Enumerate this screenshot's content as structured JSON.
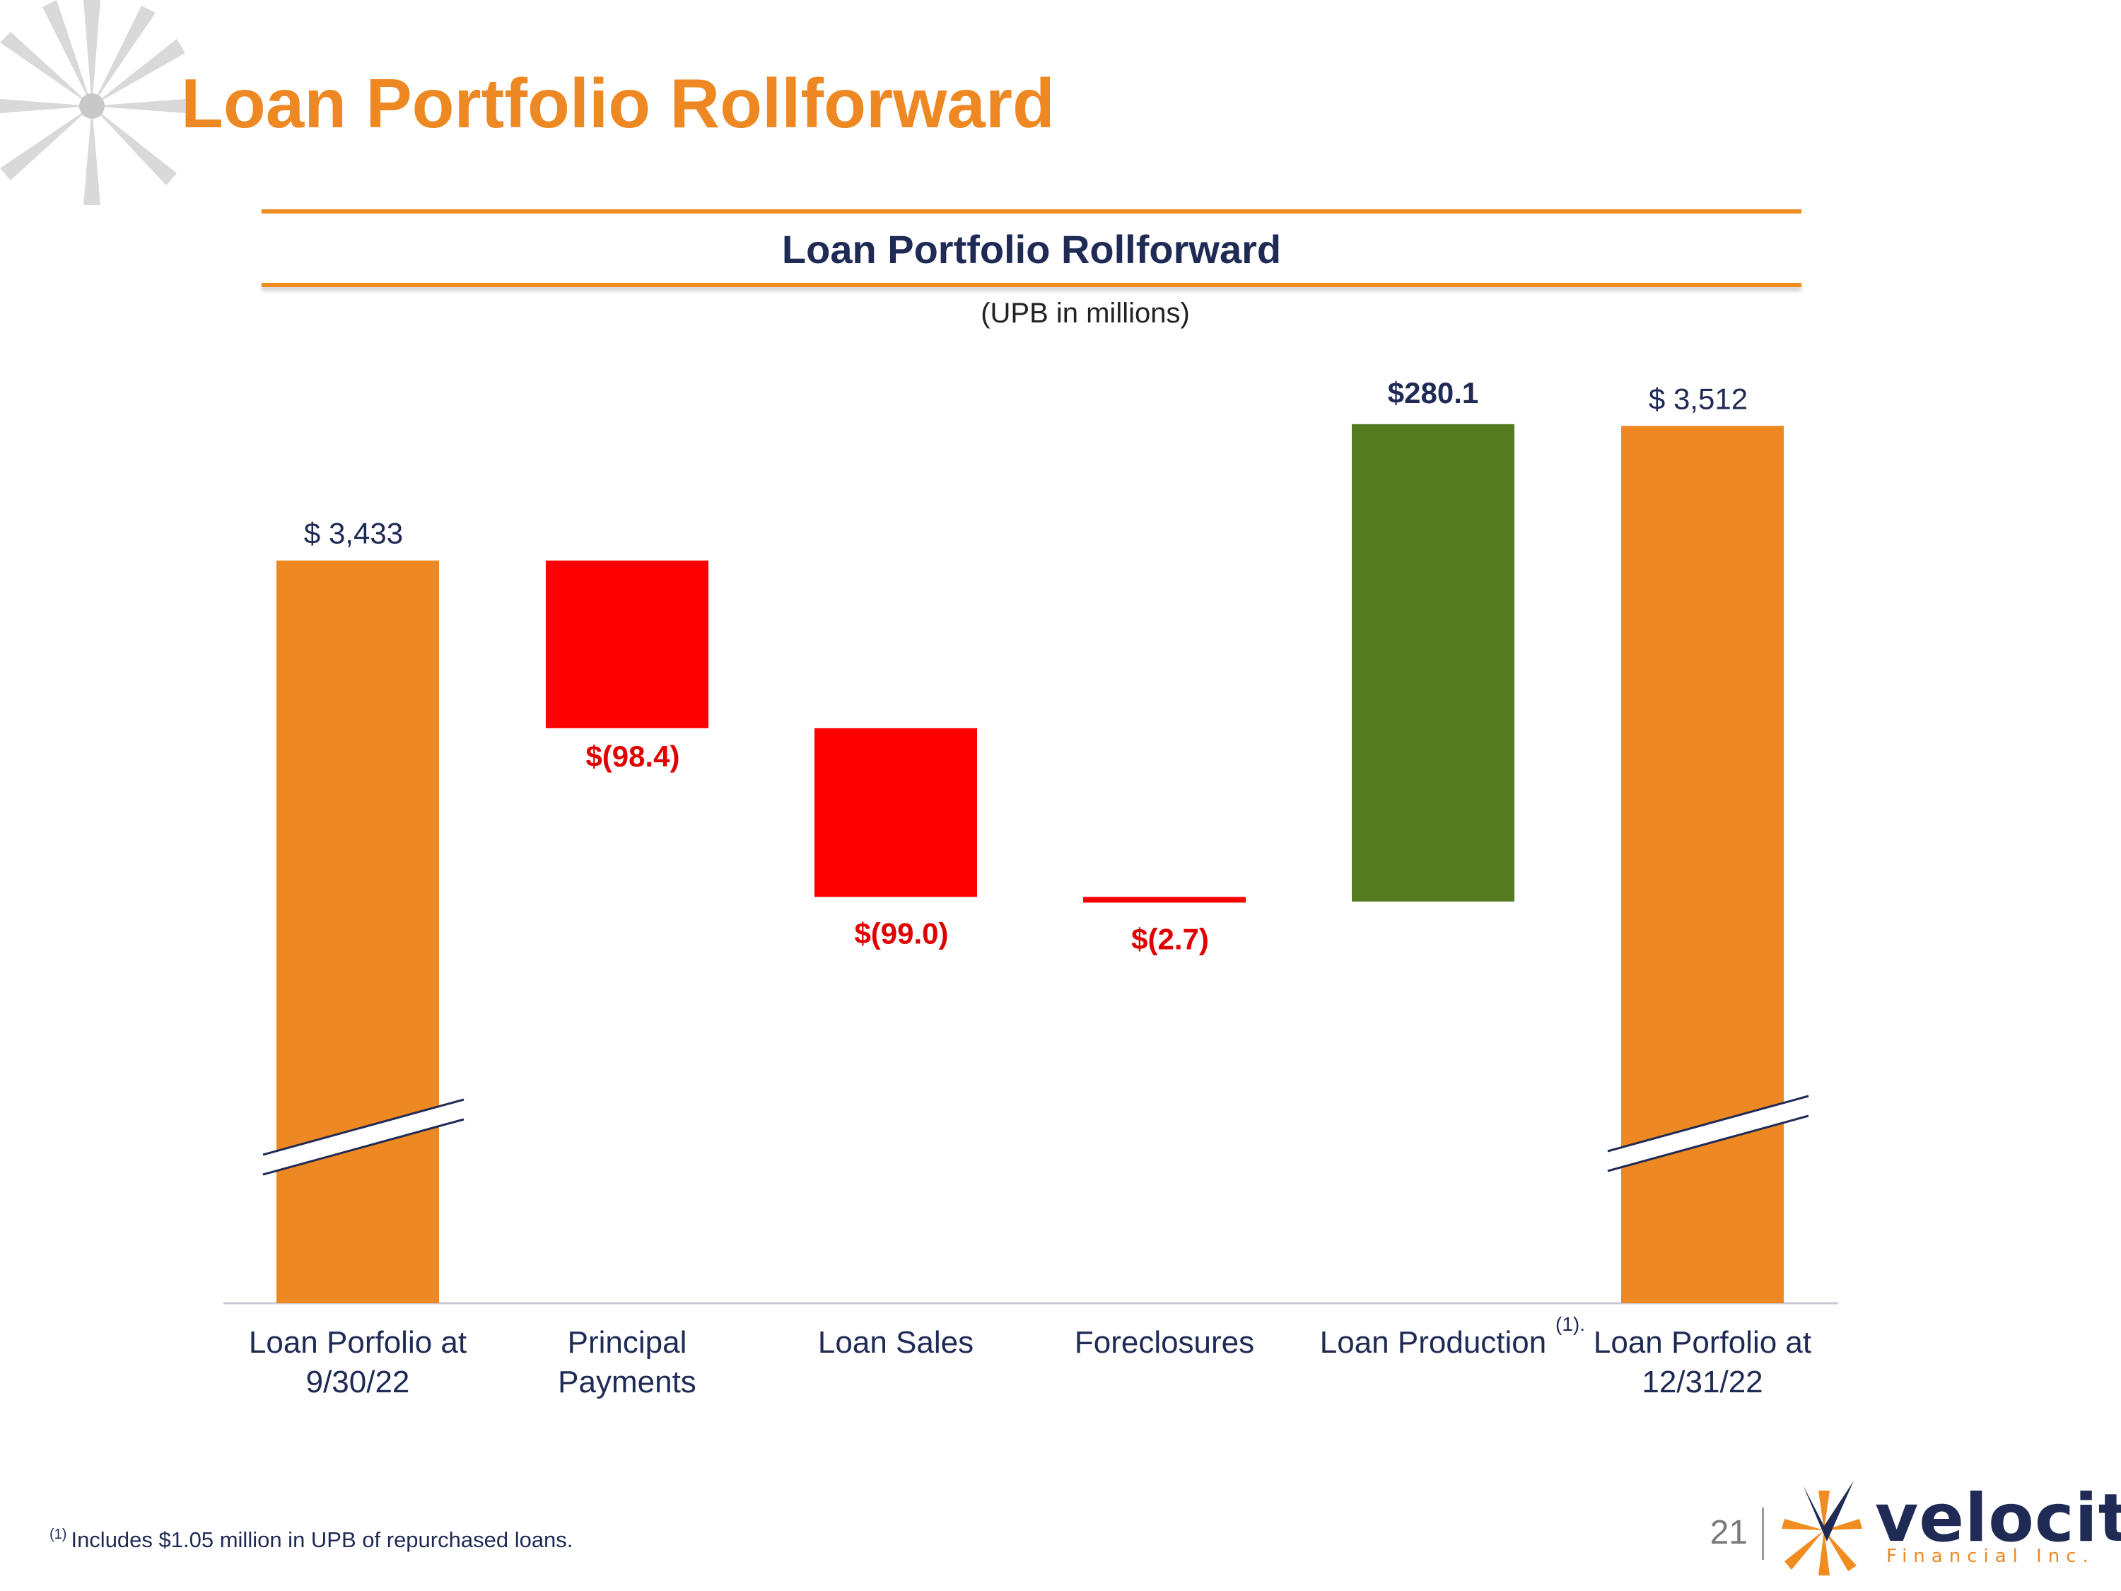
{
  "slide": {
    "title": "Loan Portfolio Rollforward",
    "chart_heading": "Loan Portfolio Rollforward",
    "chart_subheading": "(UPB in millions)",
    "footnote_marker": "(1)",
    "footnote_text": "Includes $1.05 million in UPB of repurchased loans.",
    "page_number": "21",
    "logo_name": "velocity",
    "logo_tagline": "Financial Inc."
  },
  "colors": {
    "title": "#EE8822",
    "total_bar": "#EE8822",
    "decrease_bar": "#FF0000",
    "increase_bar": "#547B1F",
    "navy": "#1F2A55",
    "decrease_label": "#E00000"
  },
  "chart_data": {
    "type": "waterfall",
    "title": "Loan Portfolio Rollforward",
    "subtitle": "(UPB in millions)",
    "units": "$ millions (UPB)",
    "axis_break": true,
    "y_visible_range": [
      2750,
      3520
    ],
    "categories": [
      "Loan Porfolio at\n9/30/22",
      "Principal\nPayments",
      "Loan Sales",
      "Foreclosures",
      "Loan Production",
      "Loan Porfolio at\n12/31/22"
    ],
    "category_footnotes": [
      "",
      "",
      "",
      "",
      "(1).",
      ""
    ],
    "kinds": [
      "total",
      "decrease",
      "decrease",
      "decrease",
      "increase",
      "total"
    ],
    "values": [
      3433,
      -98.4,
      -99.0,
      -2.7,
      280.1,
      3512
    ],
    "data_labels": [
      "$ 3,433",
      "$(98.4)",
      "$(99.0)",
      "$(2.7)",
      "$280.1",
      "$ 3,512"
    ]
  }
}
